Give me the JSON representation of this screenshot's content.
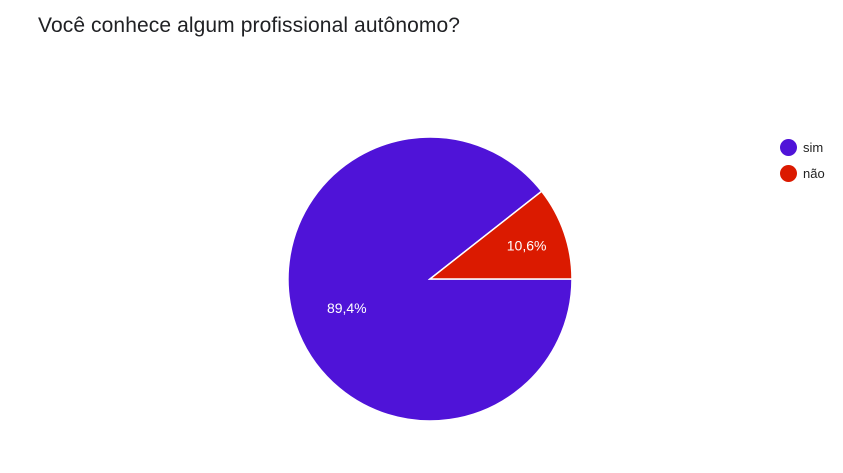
{
  "question": {
    "title": "Você conhece algum profissional autônomo?"
  },
  "chart_data": {
    "type": "pie",
    "title": "Você conhece algum profissional autônomo?",
    "legend_position": "right",
    "slices": [
      {
        "label": "sim",
        "value": 89.4,
        "display": "89,4%",
        "color": "#4f13d8"
      },
      {
        "label": "não",
        "value": 10.6,
        "display": "10,6%",
        "color": "#db1a00"
      }
    ],
    "slice_border_color": "#ffffff"
  }
}
